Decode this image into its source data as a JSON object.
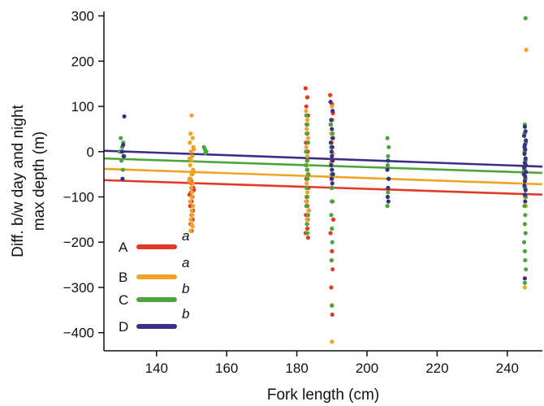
{
  "chart_data": {
    "type": "scatter",
    "title": "",
    "xlabel": "Fork length (cm)",
    "ylabel_lines": [
      "Diff. b/w day and night",
      "max depth (m)"
    ],
    "xlim": [
      125,
      250
    ],
    "ylim": [
      -440,
      310
    ],
    "xticks": [
      140,
      160,
      180,
      200,
      220,
      240
    ],
    "yticks": [
      300,
      200,
      100,
      0,
      -100,
      -200,
      -300,
      -400
    ],
    "ytick_labels": [
      "300",
      "200",
      "100",
      "0",
      "−100",
      "−200",
      "−300",
      "−400"
    ],
    "grid": false,
    "legend": {
      "placement": "bottom-left"
    },
    "series": [
      {
        "name": "A",
        "significance": "a",
        "color": "#e03a26",
        "regression": {
          "x": [
            125,
            250
          ],
          "y": [
            -63,
            -95
          ]
        },
        "points": [
          [
            149.5,
            -60
          ],
          [
            150,
            -70
          ],
          [
            150.5,
            -80
          ],
          [
            149.8,
            -90
          ],
          [
            150.2,
            -100
          ],
          [
            150,
            -110
          ],
          [
            149.6,
            -120
          ],
          [
            150.4,
            -130
          ],
          [
            150,
            -140
          ],
          [
            150.3,
            -150
          ],
          [
            149.7,
            -160
          ],
          [
            150,
            -175
          ],
          [
            150.1,
            -50
          ],
          [
            149.9,
            -65
          ],
          [
            150.6,
            -85
          ],
          [
            149.4,
            -95
          ],
          [
            182.5,
            140
          ],
          [
            183,
            120
          ],
          [
            182.7,
            100
          ],
          [
            183.2,
            80
          ],
          [
            182.8,
            60
          ],
          [
            183,
            40
          ],
          [
            182.6,
            20
          ],
          [
            183.1,
            0
          ],
          [
            182.9,
            -20
          ],
          [
            183,
            -40
          ],
          [
            182.7,
            -60
          ],
          [
            183.3,
            -80
          ],
          [
            182.8,
            -100
          ],
          [
            183,
            -120
          ],
          [
            182.6,
            -140
          ],
          [
            183.1,
            -150
          ],
          [
            182.9,
            -160
          ],
          [
            183,
            -170
          ],
          [
            182.5,
            -180
          ],
          [
            183.2,
            -190
          ],
          [
            182.8,
            -110
          ],
          [
            183.4,
            -130
          ],
          [
            189.5,
            125
          ],
          [
            190,
            105
          ],
          [
            190.3,
            85
          ],
          [
            189.7,
            60
          ],
          [
            190.1,
            30
          ],
          [
            189.9,
            10
          ],
          [
            190,
            -20
          ],
          [
            190.2,
            -50
          ],
          [
            189.8,
            -80
          ],
          [
            190,
            -110
          ],
          [
            190.4,
            -150
          ],
          [
            189.6,
            -180
          ],
          [
            190,
            -220
          ],
          [
            190.2,
            -260
          ],
          [
            189.8,
            -300
          ],
          [
            190,
            -340
          ],
          [
            190.1,
            -360
          ],
          [
            189.9,
            -240
          ]
        ]
      },
      {
        "name": "B",
        "significance": "a",
        "color": "#f0a324",
        "regression": {
          "x": [
            125,
            250
          ],
          "y": [
            -38,
            -72
          ]
        },
        "points": [
          [
            150,
            80
          ],
          [
            149.7,
            40
          ],
          [
            150.3,
            30
          ],
          [
            149.5,
            20
          ],
          [
            150.5,
            10
          ],
          [
            149.8,
            0
          ],
          [
            150.2,
            -10
          ],
          [
            150,
            -20
          ],
          [
            149.6,
            -30
          ],
          [
            150.4,
            -40
          ],
          [
            150,
            -50
          ],
          [
            149.7,
            -60
          ],
          [
            150.3,
            -70
          ],
          [
            149.9,
            -80
          ],
          [
            150.1,
            -90
          ],
          [
            150,
            -100
          ],
          [
            149.6,
            -110
          ],
          [
            150.4,
            -120
          ],
          [
            150,
            -130
          ],
          [
            150.2,
            -140
          ],
          [
            149.8,
            -150
          ],
          [
            150,
            -160
          ],
          [
            150.3,
            -165
          ],
          [
            149.7,
            -175
          ],
          [
            150.6,
            5
          ],
          [
            149.4,
            -15
          ],
          [
            150.7,
            -45
          ],
          [
            149.3,
            -65
          ],
          [
            182.6,
            90
          ],
          [
            183,
            70
          ],
          [
            182.8,
            50
          ],
          [
            183.2,
            30
          ],
          [
            182.7,
            10
          ],
          [
            183,
            -10
          ],
          [
            182.9,
            -30
          ],
          [
            183.1,
            -50
          ],
          [
            182.8,
            -70
          ],
          [
            183,
            -90
          ],
          [
            182.6,
            -110
          ],
          [
            183.3,
            -130
          ],
          [
            182.9,
            -150
          ],
          [
            190,
            100
          ],
          [
            190.2,
            70
          ],
          [
            189.8,
            40
          ],
          [
            190,
            20
          ],
          [
            190.3,
            -5
          ],
          [
            189.7,
            -25
          ],
          [
            190,
            -40
          ],
          [
            190.1,
            -60
          ],
          [
            189.9,
            -80
          ],
          [
            190,
            -420
          ],
          [
            245.4,
            225
          ],
          [
            245,
            40
          ],
          [
            245.2,
            20
          ],
          [
            244.9,
            0
          ],
          [
            245.3,
            -20
          ],
          [
            245.1,
            -40
          ],
          [
            245,
            -60
          ],
          [
            245.2,
            -80
          ],
          [
            245,
            -100
          ],
          [
            245.3,
            -120
          ],
          [
            245,
            -300
          ]
        ]
      },
      {
        "name": "C",
        "significance": "b",
        "color": "#4aa63a",
        "regression": {
          "x": [
            125,
            250
          ],
          "y": [
            -15,
            -47
          ]
        },
        "points": [
          [
            129.8,
            30
          ],
          [
            130.5,
            20
          ],
          [
            130.2,
            10
          ],
          [
            129.5,
            0
          ],
          [
            130.8,
            -10
          ],
          [
            130,
            -20
          ],
          [
            130.4,
            -40
          ],
          [
            153.5,
            10
          ],
          [
            153.8,
            5
          ],
          [
            154.2,
            0
          ],
          [
            153.9,
            -3
          ],
          [
            182.7,
            80
          ],
          [
            183,
            60
          ],
          [
            182.8,
            40
          ],
          [
            183.2,
            20
          ],
          [
            182.6,
            0
          ],
          [
            183,
            -20
          ],
          [
            182.9,
            -40
          ],
          [
            183.1,
            -60
          ],
          [
            182.8,
            -80
          ],
          [
            183,
            -100
          ],
          [
            182.7,
            -120
          ],
          [
            183.2,
            -140
          ],
          [
            182.9,
            -160
          ],
          [
            183,
            -180
          ],
          [
            182.6,
            -30
          ],
          [
            183.3,
            -50
          ],
          [
            189.6,
            60
          ],
          [
            190.2,
            40
          ],
          [
            189.8,
            10
          ],
          [
            190.1,
            -20
          ],
          [
            189.9,
            -50
          ],
          [
            190,
            -80
          ],
          [
            190.2,
            -110
          ],
          [
            189.8,
            -140
          ],
          [
            190,
            -170
          ],
          [
            190.1,
            -200
          ],
          [
            189.9,
            -240
          ],
          [
            190,
            -340
          ],
          [
            205.8,
            30
          ],
          [
            206.2,
            10
          ],
          [
            206,
            -10
          ],
          [
            205.9,
            -30
          ],
          [
            206.1,
            -60
          ],
          [
            206,
            -90
          ],
          [
            205.8,
            -120
          ],
          [
            245.2,
            295
          ],
          [
            245,
            60
          ],
          [
            244.9,
            40
          ],
          [
            245.3,
            20
          ],
          [
            245,
            0
          ],
          [
            245.1,
            -20
          ],
          [
            244.8,
            -40
          ],
          [
            245.2,
            -60
          ],
          [
            245,
            -80
          ],
          [
            245.3,
            -100
          ],
          [
            244.9,
            -120
          ],
          [
            245.1,
            -140
          ],
          [
            245,
            -160
          ],
          [
            245.2,
            -180
          ],
          [
            244.8,
            -200
          ],
          [
            245,
            -220
          ],
          [
            245.1,
            -240
          ],
          [
            245.3,
            -260
          ],
          [
            245,
            -290
          ]
        ]
      },
      {
        "name": "D",
        "significance": "b",
        "color": "#3a2f86",
        "regression": {
          "x": [
            125,
            250
          ],
          "y": [
            2,
            -33
          ]
        },
        "points": [
          [
            130.8,
            78
          ],
          [
            130.5,
            15
          ],
          [
            130.2,
            0
          ],
          [
            130.6,
            -10
          ],
          [
            130.3,
            -60
          ],
          [
            189.6,
            110
          ],
          [
            190.2,
            90
          ],
          [
            189.8,
            70
          ],
          [
            190,
            50
          ],
          [
            190.3,
            30
          ],
          [
            189.7,
            20
          ],
          [
            190.1,
            10
          ],
          [
            189.9,
            0
          ],
          [
            190,
            -10
          ],
          [
            190.2,
            -20
          ],
          [
            189.8,
            -30
          ],
          [
            190,
            -40
          ],
          [
            190.3,
            -50
          ],
          [
            189.9,
            -60
          ],
          [
            190.1,
            -70
          ],
          [
            206,
            -20
          ],
          [
            205.8,
            -40
          ],
          [
            206.2,
            -60
          ],
          [
            206,
            -80
          ],
          [
            205.9,
            -100
          ],
          [
            206.1,
            -110
          ],
          [
            245,
            55
          ],
          [
            245.2,
            45
          ],
          [
            244.8,
            35
          ],
          [
            245.3,
            25
          ],
          [
            245,
            15
          ],
          [
            245.1,
            5
          ],
          [
            244.9,
            -5
          ],
          [
            245.2,
            -15
          ],
          [
            245,
            -25
          ],
          [
            244.8,
            -35
          ],
          [
            245.3,
            -45
          ],
          [
            245.1,
            -55
          ],
          [
            245,
            -65
          ],
          [
            244.9,
            -75
          ],
          [
            245.2,
            -85
          ],
          [
            245,
            -95
          ],
          [
            245.1,
            -110
          ],
          [
            244.9,
            10
          ],
          [
            245.3,
            -30
          ],
          [
            244.7,
            -50
          ],
          [
            245,
            -280
          ]
        ]
      }
    ]
  }
}
